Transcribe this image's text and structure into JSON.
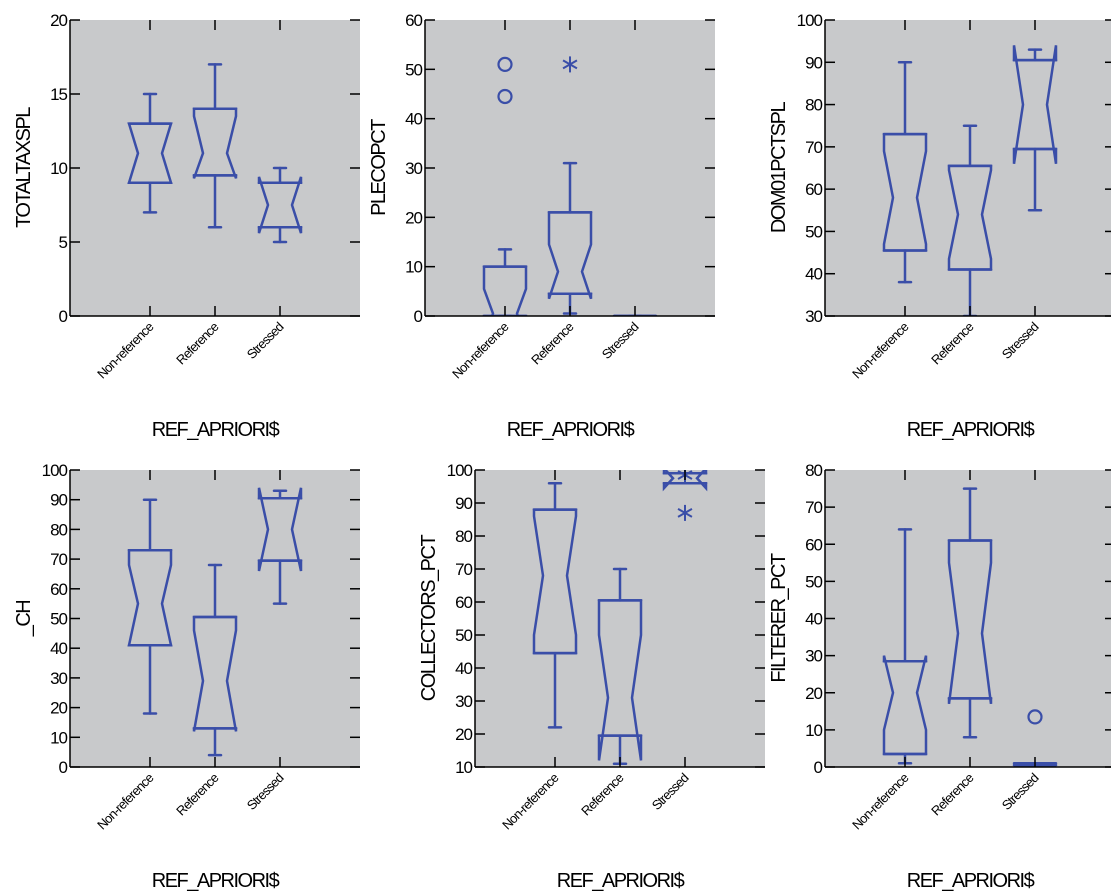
{
  "colors": {
    "panel_bg": "#c8c9cb",
    "box": "#3a4ea8",
    "axis": "#000000"
  },
  "chart_data": [
    {
      "type": "boxplot",
      "xlabel": "REF_APRIORI$",
      "ylabel": "TOTALTAXSPL",
      "ylim": [
        0,
        20
      ],
      "yticks": [
        0,
        5,
        10,
        15,
        20
      ],
      "categories": [
        "Non-reference",
        "Reference",
        "Stressed"
      ],
      "boxes": [
        {
          "whisker_low": 7,
          "q1": 9,
          "median": 11,
          "q3": 13,
          "whisker_high": 15,
          "notch_low": 9,
          "notch_high": 13,
          "outliers": [],
          "extremes": []
        },
        {
          "whisker_low": 6,
          "q1": 9.5,
          "median": 11,
          "q3": 14,
          "whisker_high": 17,
          "notch_low": 9.3,
          "notch_high": 13.5,
          "outliers": [],
          "extremes": []
        },
        {
          "whisker_low": 5,
          "q1": 6,
          "median": 7.5,
          "q3": 9,
          "whisker_high": 10,
          "notch_low": 5.6,
          "notch_high": 9.4,
          "outliers": [],
          "extremes": []
        }
      ]
    },
    {
      "type": "boxplot",
      "xlabel": "REF_APRIORI$",
      "ylabel": "PLECOPCT",
      "ylim": [
        0,
        60
      ],
      "yticks": [
        0,
        10,
        20,
        30,
        40,
        50,
        60
      ],
      "categories": [
        "Non-reference",
        "Reference",
        "Stressed"
      ],
      "boxes": [
        {
          "whisker_low": 0,
          "q1": 0,
          "median": 0.5,
          "q3": 10,
          "whisker_high": 13.5,
          "notch_low": -5,
          "notch_high": 5.5,
          "outliers": [
            44.5,
            51
          ],
          "extremes": []
        },
        {
          "whisker_low": 0.5,
          "q1": 4.5,
          "median": 9,
          "q3": 21,
          "whisker_high": 31,
          "notch_low": 3.5,
          "notch_high": 14.5,
          "outliers": [],
          "extremes": [
            51
          ]
        },
        {
          "whisker_low": 0,
          "q1": 0,
          "median": 0,
          "q3": 0,
          "whisker_high": 0,
          "notch_low": 0,
          "notch_high": 0,
          "outliers": [],
          "extremes": []
        }
      ]
    },
    {
      "type": "boxplot",
      "xlabel": "REF_APRIORI$",
      "ylabel": "DOM01PCTSPL",
      "ylim": [
        30,
        100
      ],
      "yticks": [
        30,
        40,
        50,
        60,
        70,
        80,
        90,
        100
      ],
      "categories": [
        "Non-reference",
        "Reference",
        "Stressed"
      ],
      "boxes": [
        {
          "whisker_low": 38,
          "q1": 45.5,
          "median": 58,
          "q3": 73,
          "whisker_high": 90,
          "notch_low": 47,
          "notch_high": 69,
          "outliers": [],
          "extremes": []
        },
        {
          "whisker_low": 30,
          "q1": 41,
          "median": 54,
          "q3": 65.5,
          "whisker_high": 75,
          "notch_low": 43.5,
          "notch_high": 64.5,
          "outliers": [],
          "extremes": []
        },
        {
          "whisker_low": 55,
          "q1": 69.5,
          "median": 80,
          "q3": 90.5,
          "whisker_high": 93,
          "notch_low": 66,
          "notch_high": 94,
          "outliers": [],
          "extremes": []
        }
      ]
    },
    {
      "type": "boxplot",
      "xlabel": "REF_APRIORI$",
      "ylabel": "_CH",
      "ylim": [
        0,
        100
      ],
      "yticks": [
        0,
        10,
        20,
        30,
        40,
        50,
        60,
        70,
        80,
        90,
        100
      ],
      "categories": [
        "Non-reference",
        "Reference",
        "Stressed"
      ],
      "boxes": [
        {
          "whisker_low": 18,
          "q1": 41,
          "median": 55,
          "q3": 73,
          "whisker_high": 90,
          "notch_low": 41,
          "notch_high": 68,
          "outliers": [],
          "extremes": []
        },
        {
          "whisker_low": 4,
          "q1": 13,
          "median": 29,
          "q3": 50.5,
          "whisker_high": 68,
          "notch_low": 12,
          "notch_high": 46,
          "outliers": [],
          "extremes": []
        },
        {
          "whisker_low": 55,
          "q1": 69.5,
          "median": 80,
          "q3": 90.5,
          "whisker_high": 93,
          "notch_low": 66,
          "notch_high": 94,
          "outliers": [],
          "extremes": []
        }
      ]
    },
    {
      "type": "boxplot",
      "xlabel": "REF_APRIORI$",
      "ylabel": "COLLECTORS_PCT",
      "ylim": [
        10,
        100
      ],
      "yticks": [
        10,
        20,
        30,
        40,
        50,
        60,
        70,
        80,
        90,
        100
      ],
      "categories": [
        "Non-reference",
        "Reference",
        "Stressed"
      ],
      "boxes": [
        {
          "whisker_low": 22,
          "q1": 44.5,
          "median": 68,
          "q3": 88,
          "whisker_high": 96,
          "notch_low": 50,
          "notch_high": 86,
          "outliers": [],
          "extremes": []
        },
        {
          "whisker_low": 11,
          "q1": 19.5,
          "median": 31,
          "q3": 60.5,
          "whisker_high": 70,
          "notch_low": 12,
          "notch_high": 50,
          "outliers": [],
          "extremes": []
        },
        {
          "whisker_low": 96,
          "q1": 96,
          "median": 97.5,
          "q3": 99,
          "whisker_high": 99,
          "notch_low": 94.5,
          "notch_high": 100.5,
          "outliers": [],
          "extremes": [
            87,
            98.5
          ]
        }
      ]
    },
    {
      "type": "boxplot",
      "xlabel": "REF_APRIORI$",
      "ylabel": "FILTERER_PCT",
      "ylim": [
        0,
        80
      ],
      "yticks": [
        0,
        10,
        20,
        30,
        40,
        50,
        60,
        70,
        80
      ],
      "categories": [
        "Non-reference",
        "Reference",
        "Stressed"
      ],
      "boxes": [
        {
          "whisker_low": 1,
          "q1": 3.5,
          "median": 20,
          "q3": 28.5,
          "whisker_high": 64,
          "notch_low": 10,
          "notch_high": 30,
          "outliers": [],
          "extremes": []
        },
        {
          "whisker_low": 8,
          "q1": 18.5,
          "median": 36,
          "q3": 61,
          "whisker_high": 75,
          "notch_low": 17,
          "notch_high": 55,
          "outliers": [],
          "extremes": []
        },
        {
          "whisker_low": 0.5,
          "q1": 0.5,
          "median": 0.5,
          "q3": 1,
          "whisker_high": 1,
          "notch_low": 0.5,
          "notch_high": 1,
          "outliers": [
            13.5
          ],
          "extremes": []
        }
      ]
    }
  ]
}
